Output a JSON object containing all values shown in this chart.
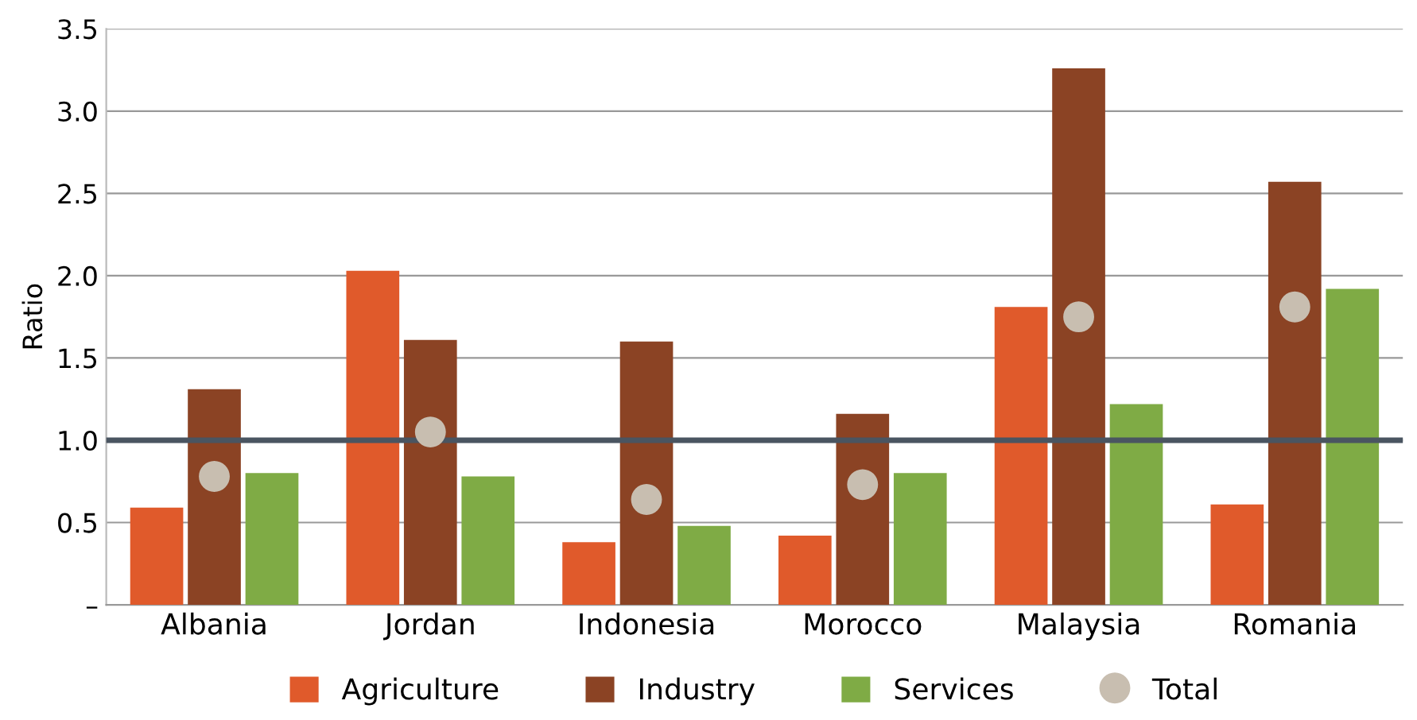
{
  "chart_data": {
    "type": "bar",
    "ylabel": "Ratio",
    "categories": [
      "Albania",
      "Jordan",
      "Indonesia",
      "Morocco",
      "Malaysia",
      "Romania"
    ],
    "series": [
      {
        "name": "Agriculture",
        "color": "#e05a2b",
        "values": [
          0.59,
          2.03,
          0.38,
          0.42,
          1.81,
          0.61
        ]
      },
      {
        "name": "Industry",
        "color": "#8b4324",
        "values": [
          1.31,
          1.61,
          1.6,
          1.16,
          3.26,
          2.57
        ]
      },
      {
        "name": "Services",
        "color": "#7fab45",
        "values": [
          0.8,
          0.78,
          0.48,
          0.8,
          1.22,
          1.92
        ]
      },
      {
        "name": "Total",
        "type": "scatter",
        "color": "#c8beb0",
        "values": [
          0.78,
          1.05,
          0.64,
          0.73,
          1.75,
          1.81
        ]
      }
    ],
    "ylim": [
      0,
      3.5
    ],
    "yticks": [
      {
        "value": 0,
        "label": "–"
      },
      0.5,
      {
        "value": 1,
        "label": "1.0"
      },
      1.5,
      {
        "value": 2,
        "label": "2.0"
      },
      2.5,
      {
        "value": 3,
        "label": "3.0"
      },
      3.5
    ],
    "grid": "y",
    "legend": "bottom",
    "marker": "circle",
    "ref_lines": [
      {
        "axis": "y",
        "value": 1.0,
        "color": "#4a5561"
      }
    ]
  }
}
